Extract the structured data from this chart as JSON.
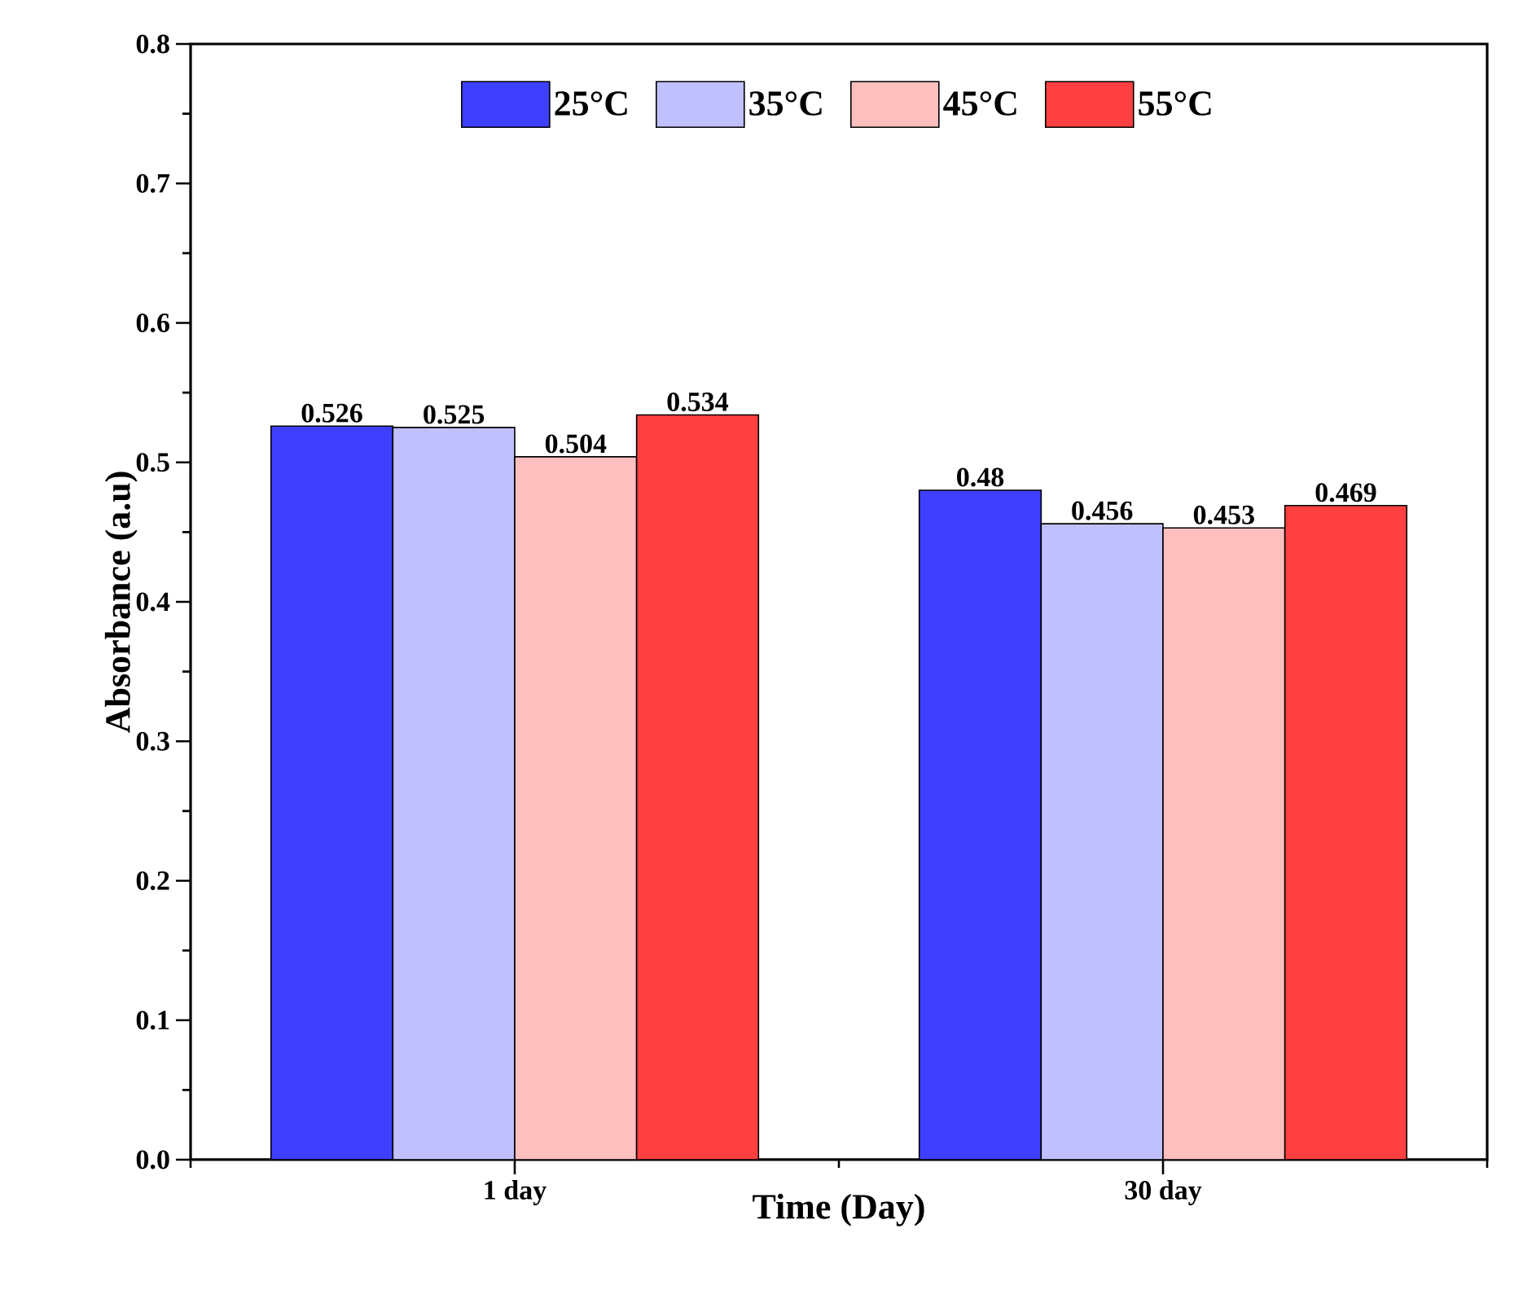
{
  "chart_data": {
    "type": "bar",
    "xlabel": "Time (Day)",
    "ylabel": "Absorbance (a.u)",
    "categories": [
      "1 day",
      "30 day"
    ],
    "series": [
      {
        "name": "25°C",
        "color": "#3f3fff",
        "values": [
          0.526,
          0.48
        ]
      },
      {
        "name": "35°C",
        "color": "#c0c0ff",
        "values": [
          0.525,
          0.456
        ]
      },
      {
        "name": "45°C",
        "color": "#ffbfbf",
        "values": [
          0.504,
          0.453
        ]
      },
      {
        "name": "55°C",
        "color": "#ff4040",
        "values": [
          0.534,
          0.469
        ]
      }
    ],
    "ylim": [
      0,
      0.8
    ],
    "yticks": [
      {
        "value": 0,
        "label": "0.0"
      },
      0.1,
      0.2,
      0.3,
      0.4,
      0.5,
      0.6,
      0.7,
      0.8
    ],
    "data_labels": true,
    "legend": "top",
    "grid": false
  }
}
